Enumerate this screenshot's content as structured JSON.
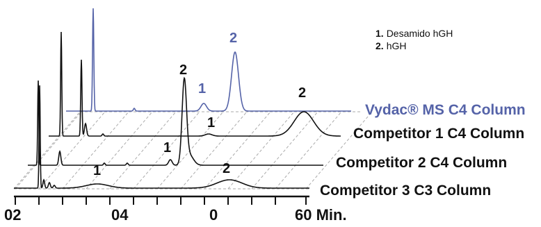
{
  "chart_data": {
    "type": "line",
    "title": "",
    "xlabel": "",
    "ylabel": "",
    "x_ticks": [
      "02",
      "04",
      "0",
      "60 Min."
    ],
    "legend": [
      {
        "number": "1.",
        "label": "Desamido hGH"
      },
      {
        "number": "2.",
        "label": "hGH"
      }
    ],
    "series": [
      {
        "name": "Vydac® MS C4 Column",
        "color": "#5563a8",
        "peak_labels": [
          {
            "text": "1",
            "color": "#5563a8"
          },
          {
            "text": "2",
            "color": "#5563a8"
          }
        ]
      },
      {
        "name": "Competitor 1 C4 Column",
        "color": "#111111",
        "peak_labels": [
          {
            "text": "1",
            "color": "#111111"
          },
          {
            "text": "2",
            "color": "#111111"
          }
        ]
      },
      {
        "name": "Competitor 2 C4 Column",
        "color": "#111111",
        "peak_labels": [
          {
            "text": "1",
            "color": "#111111"
          },
          {
            "text": "2",
            "color": "#111111"
          }
        ]
      },
      {
        "name": "Competitor 3 C3 Column",
        "color": "#111111",
        "peak_labels": [
          {
            "text": "1",
            "color": "#111111"
          },
          {
            "text": "2",
            "color": "#111111"
          }
        ]
      }
    ],
    "colors": {
      "accent": "#5563a8",
      "trace": "#111111",
      "grid": "#aaaaaa"
    }
  }
}
